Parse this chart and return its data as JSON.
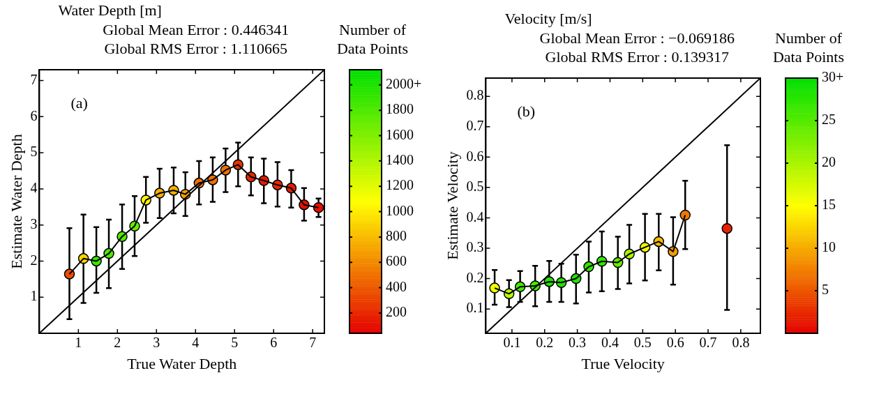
{
  "chart_data": [
    {
      "type": "scatter",
      "title": "Water Depth [m]",
      "subtitle": "Global Mean Error : 0.446341\nGlobal RMS Error : 1.110665",
      "xlabel": "True Water Depth",
      "ylabel": "Estimate Water Depth",
      "clabel": "Number of Data Points",
      "annotations": [
        "(a)"
      ],
      "xlim": [
        0,
        7.3
      ],
      "ylim": [
        0,
        7.3
      ],
      "xticks": [
        1,
        2,
        3,
        4,
        5,
        6,
        7
      ],
      "yticks": [
        1,
        2,
        3,
        4,
        5,
        6,
        7
      ],
      "clim": [
        40,
        2120
      ],
      "cticks": [
        200,
        400,
        600,
        800,
        1000,
        1200,
        1400,
        1600,
        1800,
        {
          "value": 2000,
          "label": "2000+"
        }
      ],
      "grid": false,
      "legend": false,
      "series": [
        {
          "type": "line",
          "color": "#000000",
          "marker": "none",
          "x": [
            0,
            7.3
          ],
          "values": [
            0,
            7.3
          ]
        },
        {
          "type": "line",
          "color": "#000000",
          "marker": "none",
          "x": [
            0.77,
            1.13,
            1.46,
            1.78,
            2.12,
            2.44,
            2.73,
            3.08,
            3.44,
            3.74,
            4.09,
            4.44,
            4.77,
            5.09,
            5.42,
            5.75,
            6.1,
            6.45,
            6.78,
            7.15
          ],
          "values": [
            1.64,
            2.07,
            2.0,
            2.21,
            2.68,
            2.97,
            3.69,
            3.88,
            3.96,
            3.85,
            4.16,
            4.25,
            4.52,
            4.67,
            4.33,
            4.23,
            4.11,
            4.02,
            3.56,
            3.48
          ]
        },
        {
          "type": "scatter",
          "color": "#000000",
          "marker": "circle",
          "x": [
            0.77,
            1.13,
            1.46,
            1.78,
            2.12,
            2.44,
            2.73,
            3.08,
            3.44,
            3.74,
            4.09,
            4.44,
            4.77,
            5.09,
            5.42,
            5.75,
            6.1,
            6.45,
            6.78,
            7.15
          ],
          "values": [
            1.64,
            2.07,
            2.0,
            2.21,
            2.68,
            2.97,
            3.69,
            3.88,
            3.96,
            3.85,
            4.16,
            4.25,
            4.52,
            4.67,
            4.33,
            4.23,
            4.11,
            4.02,
            3.56,
            3.48
          ],
          "cvalues": [
            350,
            900,
            1900,
            1800,
            1800,
            1700,
            1050,
            750,
            750,
            700,
            500,
            500,
            500,
            250,
            200,
            150,
            200,
            150,
            100,
            100
          ],
          "errors": [
            [
              0.39,
              2.91
            ],
            [
              0.84,
              3.29
            ],
            [
              1.12,
              2.94
            ],
            [
              1.25,
              3.15
            ],
            [
              1.78,
              3.57
            ],
            [
              2.14,
              3.8
            ],
            [
              3.06,
              4.33
            ],
            [
              3.19,
              4.56
            ],
            [
              3.32,
              4.59
            ],
            [
              3.25,
              4.46
            ],
            [
              3.57,
              4.77
            ],
            [
              3.64,
              4.87
            ],
            [
              3.91,
              5.12
            ],
            [
              4.07,
              5.28
            ],
            [
              3.82,
              4.87
            ],
            [
              3.6,
              4.84
            ],
            [
              3.51,
              4.74
            ],
            [
              3.48,
              4.52
            ],
            [
              3.12,
              4.02
            ],
            [
              3.22,
              3.73
            ]
          ]
        }
      ]
    },
    {
      "type": "scatter",
      "title": "Velocity [m/s]",
      "subtitle": "Global Mean Error : −0.069186\nGlobal RMS Error : 0.139317",
      "xlabel": "True Velocity",
      "ylabel": "Estimate Velocity",
      "clabel": "Number of Data Points",
      "annotations": [
        "(b)"
      ],
      "xlim": [
        0.02,
        0.86
      ],
      "ylim": [
        0.02,
        0.86
      ],
      "xticks": [
        0.1,
        0.2,
        0.3,
        0.4,
        0.5,
        0.6,
        0.7,
        0.8
      ],
      "yticks": [
        0.1,
        0.2,
        0.3,
        0.4,
        0.5,
        0.6,
        0.7,
        0.8
      ],
      "clim": [
        0,
        30
      ],
      "cticks": [
        5,
        10,
        15,
        20,
        25,
        {
          "value": 30,
          "label": "30+"
        }
      ],
      "grid": false,
      "legend": false,
      "series": [
        {
          "type": "line",
          "color": "#000000",
          "marker": "none",
          "x": [
            0.02,
            0.86
          ],
          "values": [
            0.02,
            0.86
          ]
        },
        {
          "type": "line",
          "color": "#000000",
          "marker": "none",
          "x": [
            0.047,
            0.091,
            0.125,
            0.171,
            0.214,
            0.251,
            0.296,
            0.335,
            0.375,
            0.424,
            0.459,
            0.507,
            0.549,
            0.593,
            0.63
          ],
          "values": [
            0.169,
            0.15,
            0.173,
            0.176,
            0.19,
            0.187,
            0.2,
            0.239,
            0.257,
            0.253,
            0.281,
            0.303,
            0.322,
            0.289,
            0.409
          ]
        },
        {
          "type": "scatter",
          "color": "#000000",
          "marker": "circle",
          "x": [
            0.047,
            0.091,
            0.125,
            0.171,
            0.214,
            0.251,
            0.296,
            0.335,
            0.375,
            0.424,
            0.459,
            0.507,
            0.549,
            0.593,
            0.63,
            0.758
          ],
          "values": [
            0.169,
            0.15,
            0.173,
            0.176,
            0.19,
            0.187,
            0.2,
            0.239,
            0.257,
            0.253,
            0.281,
            0.303,
            0.322,
            0.289,
            0.409,
            0.365
          ],
          "cvalues": [
            16,
            19,
            26,
            26,
            28,
            28,
            28,
            27,
            27,
            24,
            20,
            16,
            11,
            9,
            7,
            2
          ],
          "errors": [
            [
              0.114,
              0.228
            ],
            [
              0.106,
              0.195
            ],
            [
              0.123,
              0.225
            ],
            [
              0.109,
              0.242
            ],
            [
              0.123,
              0.258
            ],
            [
              0.123,
              0.249
            ],
            [
              0.118,
              0.279
            ],
            [
              0.154,
              0.322
            ],
            [
              0.158,
              0.355
            ],
            [
              0.166,
              0.338
            ],
            [
              0.184,
              0.377
            ],
            [
              0.194,
              0.413
            ],
            [
              0.227,
              0.413
            ],
            [
              0.18,
              0.402
            ],
            [
              0.297,
              0.522
            ],
            [
              0.097,
              0.639
            ]
          ]
        }
      ]
    }
  ]
}
